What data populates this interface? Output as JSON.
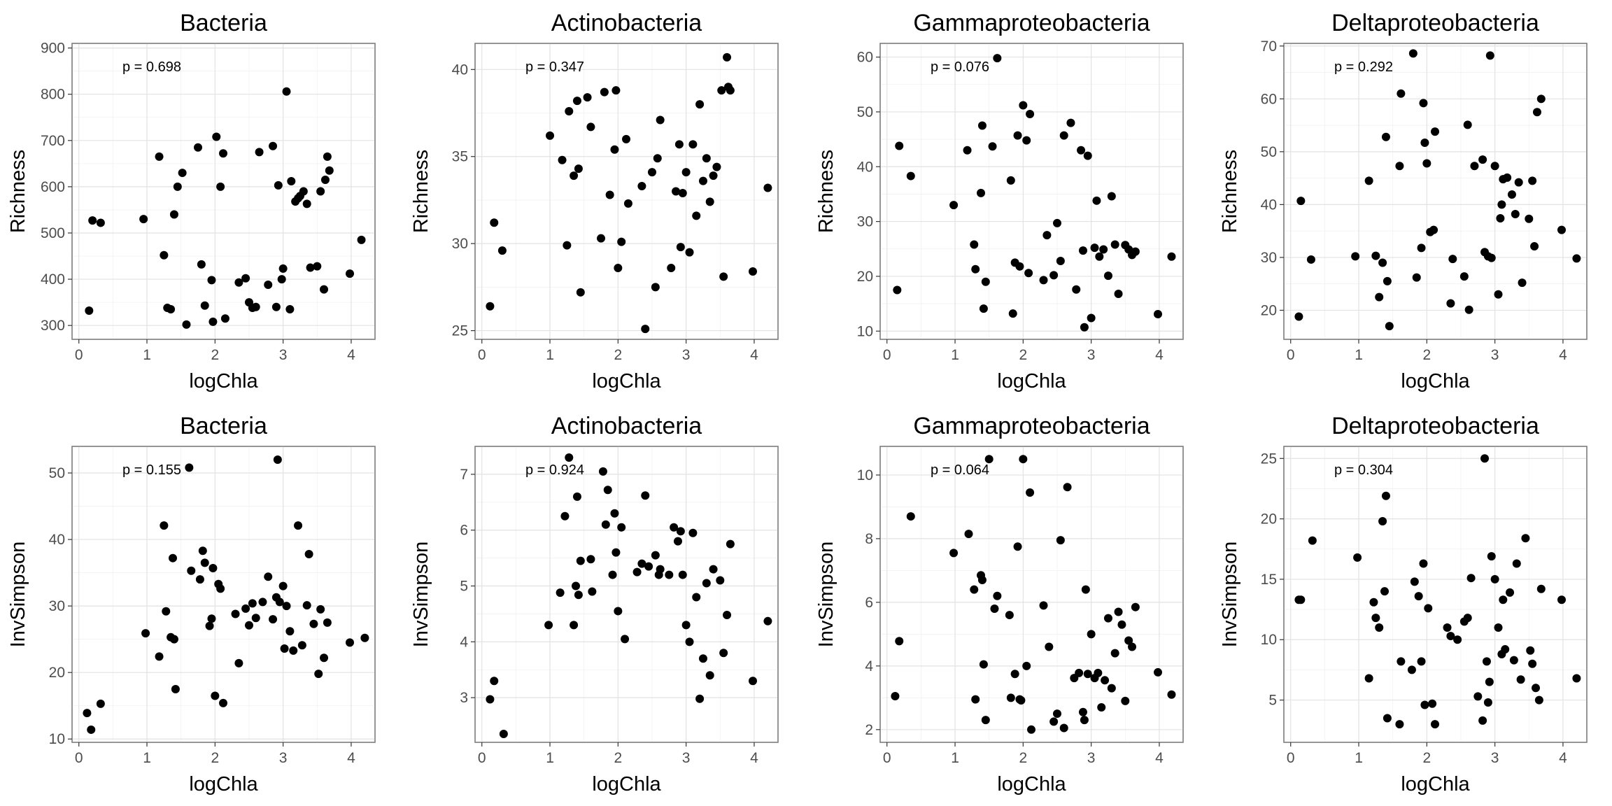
{
  "chart_data": [
    {
      "type": "scatter",
      "title": "Bacteria",
      "xlabel": "logChla",
      "ylabel": "Richness",
      "annotation": "p = 0.698",
      "xlim": [
        -0.1,
        4.35
      ],
      "ylim": [
        270,
        910
      ],
      "xticks": [
        0,
        1,
        2,
        3,
        4
      ],
      "yticks": [
        300,
        400,
        500,
        600,
        700,
        800,
        900
      ],
      "grid": true,
      "x": [
        0.15,
        0.2,
        0.32,
        0.95,
        1.18,
        1.25,
        1.3,
        1.35,
        1.4,
        1.45,
        1.52,
        1.58,
        1.75,
        1.8,
        1.85,
        1.95,
        1.97,
        2.02,
        2.08,
        2.12,
        2.15,
        2.35,
        2.45,
        2.5,
        2.55,
        2.6,
        2.65,
        2.78,
        2.85,
        2.9,
        2.93,
        2.98,
        3.0,
        3.05,
        3.1,
        3.12,
        3.18,
        3.22,
        3.25,
        3.3,
        3.35,
        3.4,
        3.5,
        3.55,
        3.6,
        3.62,
        3.65,
        3.68,
        3.98,
        4.15
      ],
      "y": [
        332,
        527,
        522,
        530,
        665,
        452,
        338,
        335,
        540,
        600,
        630,
        302,
        685,
        432,
        343,
        398,
        308,
        708,
        600,
        672,
        315,
        393,
        402,
        350,
        338,
        340,
        675,
        388,
        688,
        340,
        603,
        400,
        423,
        806,
        335,
        612,
        568,
        575,
        580,
        590,
        563,
        425,
        428,
        590,
        378,
        615,
        665,
        635,
        412,
        485
      ]
    },
    {
      "type": "scatter",
      "title": "Actinobacteria",
      "xlabel": "logChla",
      "ylabel": "Richness",
      "annotation": "p = 0.347",
      "xlim": [
        -0.1,
        4.35
      ],
      "ylim": [
        24.5,
        41.5
      ],
      "xticks": [
        0,
        1,
        2,
        3,
        4
      ],
      "yticks": [
        25,
        30,
        35,
        40
      ],
      "grid": true,
      "x": [
        0.12,
        0.18,
        0.3,
        1.0,
        1.18,
        1.25,
        1.28,
        1.35,
        1.4,
        1.42,
        1.45,
        1.55,
        1.6,
        1.75,
        1.8,
        1.88,
        1.95,
        1.97,
        2.0,
        2.05,
        2.12,
        2.15,
        2.35,
        2.4,
        2.5,
        2.55,
        2.58,
        2.62,
        2.78,
        2.85,
        2.9,
        2.92,
        2.95,
        3.0,
        3.05,
        3.1,
        3.15,
        3.2,
        3.25,
        3.3,
        3.35,
        3.4,
        3.45,
        3.52,
        3.55,
        3.6,
        3.62,
        3.65,
        3.98,
        4.2
      ],
      "y": [
        26.4,
        31.2,
        29.6,
        36.2,
        34.8,
        29.9,
        37.6,
        33.9,
        38.2,
        34.3,
        27.2,
        38.4,
        36.7,
        30.3,
        38.7,
        32.8,
        35.4,
        38.8,
        28.6,
        30.1,
        36.0,
        32.3,
        33.3,
        25.1,
        34.1,
        27.5,
        34.9,
        37.1,
        28.6,
        33.0,
        35.7,
        29.8,
        32.9,
        34.1,
        29.5,
        35.7,
        31.6,
        38.0,
        33.6,
        34.9,
        32.4,
        33.9,
        34.4,
        38.8,
        28.1,
        40.7,
        39.0,
        38.8,
        28.4,
        33.2
      ]
    },
    {
      "type": "scatter",
      "title": "Gammaproteobacteria",
      "xlabel": "logChla",
      "ylabel": "Richness",
      "annotation": "p = 0.076",
      "xlim": [
        -0.1,
        4.35
      ],
      "ylim": [
        8.5,
        62.5
      ],
      "xticks": [
        0,
        1,
        2,
        3,
        4
      ],
      "yticks": [
        10,
        20,
        30,
        40,
        50,
        60
      ],
      "grid": true,
      "x": [
        0.15,
        0.18,
        0.35,
        0.98,
        1.18,
        1.28,
        1.3,
        1.38,
        1.4,
        1.42,
        1.45,
        1.55,
        1.62,
        1.82,
        1.85,
        1.88,
        1.92,
        1.95,
        2.0,
        2.05,
        2.08,
        2.1,
        2.3,
        2.35,
        2.45,
        2.5,
        2.55,
        2.6,
        2.7,
        2.78,
        2.85,
        2.88,
        2.9,
        2.95,
        3.0,
        3.05,
        3.08,
        3.12,
        3.18,
        3.25,
        3.3,
        3.35,
        3.4,
        3.5,
        3.55,
        3.6,
        3.62,
        3.65,
        3.98,
        4.18
      ],
      "y": [
        17.5,
        43.8,
        38.3,
        33.0,
        43.0,
        25.8,
        21.3,
        35.2,
        47.5,
        14.1,
        19.0,
        43.7,
        59.8,
        37.5,
        13.2,
        22.5,
        45.7,
        21.8,
        51.2,
        44.8,
        20.6,
        49.6,
        19.3,
        27.5,
        20.2,
        29.7,
        22.8,
        45.7,
        48.0,
        17.6,
        43.0,
        24.7,
        10.7,
        42.0,
        12.4,
        25.2,
        33.8,
        23.6,
        24.9,
        20.1,
        34.6,
        25.8,
        16.8,
        25.7,
        24.9,
        23.9,
        24.4,
        24.5,
        13.1,
        23.6
      ]
    },
    {
      "type": "scatter",
      "title": "Deltaproteobacteria",
      "xlabel": "logChla",
      "ylabel": "Richness",
      "annotation": "p = 0.292",
      "xlim": [
        -0.1,
        4.35
      ],
      "ylim": [
        14.5,
        70.5
      ],
      "xticks": [
        0,
        1,
        2,
        3,
        4
      ],
      "yticks": [
        20,
        30,
        40,
        50,
        60,
        70
      ],
      "grid": true,
      "x": [
        0.12,
        0.15,
        0.3,
        0.95,
        1.15,
        1.25,
        1.3,
        1.35,
        1.4,
        1.42,
        1.45,
        1.6,
        1.62,
        1.8,
        1.85,
        1.92,
        1.95,
        1.97,
        2.0,
        2.05,
        2.1,
        2.12,
        2.35,
        2.38,
        2.55,
        2.6,
        2.62,
        2.7,
        2.82,
        2.85,
        2.9,
        2.93,
        2.95,
        3.0,
        3.05,
        3.08,
        3.1,
        3.12,
        3.18,
        3.25,
        3.3,
        3.35,
        3.4,
        3.5,
        3.55,
        3.58,
        3.62,
        3.68,
        3.98,
        4.2
      ],
      "y": [
        18.8,
        40.7,
        29.6,
        30.2,
        44.5,
        30.3,
        22.5,
        29.0,
        52.8,
        25.5,
        17.0,
        47.3,
        61.0,
        68.6,
        26.2,
        31.8,
        59.2,
        51.7,
        47.8,
        34.8,
        35.2,
        53.8,
        21.3,
        29.7,
        26.4,
        55.1,
        20.1,
        47.3,
        48.5,
        31.0,
        30.2,
        68.2,
        29.9,
        47.3,
        23.0,
        37.4,
        40.0,
        44.8,
        45.1,
        41.9,
        38.2,
        44.2,
        25.2,
        37.3,
        44.5,
        32.1,
        57.5,
        60.0,
        35.2,
        29.8
      ]
    },
    {
      "type": "scatter",
      "title": "Bacteria",
      "xlabel": "logChla",
      "ylabel": "InvSimpson",
      "annotation": "p = 0.155",
      "xlim": [
        -0.1,
        4.35
      ],
      "ylim": [
        9.5,
        54.0
      ],
      "xticks": [
        0,
        1,
        2,
        3,
        4
      ],
      "yticks": [
        10,
        20,
        30,
        40,
        50
      ],
      "grid": true,
      "x": [
        0.12,
        0.18,
        0.32,
        0.98,
        1.18,
        1.25,
        1.28,
        1.35,
        1.38,
        1.4,
        1.42,
        1.62,
        1.65,
        1.78,
        1.82,
        1.85,
        1.92,
        1.95,
        1.97,
        2.0,
        2.05,
        2.08,
        2.12,
        2.3,
        2.35,
        2.45,
        2.5,
        2.55,
        2.6,
        2.7,
        2.78,
        2.85,
        2.9,
        2.92,
        2.95,
        3.0,
        3.02,
        3.05,
        3.1,
        3.15,
        3.22,
        3.28,
        3.35,
        3.38,
        3.45,
        3.52,
        3.55,
        3.6,
        3.65,
        3.98,
        4.2
      ],
      "y": [
        13.9,
        11.4,
        15.3,
        25.9,
        22.4,
        42.1,
        29.2,
        25.3,
        37.2,
        25.0,
        17.5,
        50.8,
        35.3,
        34.0,
        38.3,
        36.5,
        27.0,
        28.1,
        35.7,
        16.5,
        33.3,
        32.6,
        15.4,
        28.8,
        21.4,
        29.6,
        27.1,
        30.4,
        28.2,
        30.6,
        34.4,
        28.0,
        31.3,
        52.0,
        30.6,
        33.0,
        23.6,
        30.0,
        26.2,
        23.3,
        42.1,
        24.1,
        30.1,
        37.8,
        27.3,
        19.8,
        29.5,
        22.2,
        27.5,
        24.5,
        25.2
      ]
    },
    {
      "type": "scatter",
      "title": "Actinobacteria",
      "xlabel": "logChla",
      "ylabel": "InvSimpson",
      "annotation": "p = 0.924",
      "xlim": [
        -0.1,
        4.35
      ],
      "ylim": [
        2.2,
        7.5
      ],
      "xticks": [
        0,
        1,
        2,
        3,
        4
      ],
      "yticks": [
        3,
        4,
        5,
        6,
        7
      ],
      "grid": true,
      "x": [
        0.12,
        0.18,
        0.32,
        0.98,
        1.15,
        1.22,
        1.28,
        1.35,
        1.38,
        1.4,
        1.42,
        1.45,
        1.6,
        1.62,
        1.78,
        1.82,
        1.85,
        1.92,
        1.95,
        1.97,
        2.0,
        2.05,
        2.1,
        2.28,
        2.35,
        2.4,
        2.45,
        2.55,
        2.6,
        2.62,
        2.75,
        2.82,
        2.88,
        2.92,
        2.95,
        3.0,
        3.05,
        3.1,
        3.15,
        3.2,
        3.25,
        3.3,
        3.35,
        3.4,
        3.5,
        3.55,
        3.6,
        3.65,
        3.98,
        4.2
      ],
      "y": [
        2.97,
        3.3,
        2.35,
        4.3,
        4.88,
        6.25,
        7.3,
        4.3,
        5.0,
        6.6,
        4.84,
        5.45,
        5.48,
        4.9,
        7.05,
        6.1,
        6.72,
        5.2,
        6.3,
        5.6,
        4.55,
        6.05,
        4.05,
        5.25,
        5.4,
        6.62,
        5.35,
        5.55,
        5.2,
        5.3,
        5.2,
        6.05,
        5.8,
        5.98,
        5.2,
        4.3,
        4.0,
        5.95,
        4.8,
        2.98,
        3.7,
        5.05,
        3.4,
        5.3,
        5.1,
        3.8,
        4.48,
        5.75,
        3.3,
        4.37
      ]
    },
    {
      "type": "scatter",
      "title": "Gammaproteobacteria",
      "xlabel": "logChla",
      "ylabel": "InvSimpson",
      "annotation": "p = 0.064",
      "xlim": [
        -0.1,
        4.35
      ],
      "ylim": [
        1.6,
        10.9
      ],
      "xticks": [
        0,
        1,
        2,
        3,
        4
      ],
      "yticks": [
        2,
        4,
        6,
        8,
        10
      ],
      "grid": true,
      "x": [
        0.12,
        0.18,
        0.35,
        0.98,
        1.2,
        1.28,
        1.3,
        1.38,
        1.4,
        1.42,
        1.45,
        1.5,
        1.58,
        1.62,
        1.8,
        1.82,
        1.88,
        1.92,
        1.95,
        1.97,
        2.0,
        2.05,
        2.1,
        2.12,
        2.3,
        2.38,
        2.45,
        2.5,
        2.55,
        2.6,
        2.65,
        2.75,
        2.82,
        2.88,
        2.9,
        2.92,
        2.95,
        3.0,
        3.05,
        3.1,
        3.15,
        3.2,
        3.25,
        3.3,
        3.35,
        3.4,
        3.45,
        3.5,
        3.55,
        3.6,
        3.65,
        3.98,
        4.18
      ],
      "y": [
        3.05,
        4.78,
        8.7,
        7.55,
        8.15,
        6.4,
        2.95,
        6.85,
        6.7,
        4.05,
        2.3,
        10.5,
        5.8,
        6.2,
        5.6,
        3.0,
        3.75,
        7.75,
        2.95,
        2.92,
        10.5,
        4.0,
        9.45,
        2.0,
        5.9,
        4.6,
        2.25,
        2.5,
        7.95,
        2.05,
        9.62,
        3.62,
        3.78,
        2.55,
        2.3,
        6.4,
        3.75,
        5.0,
        3.62,
        3.78,
        2.7,
        3.55,
        5.5,
        3.3,
        4.4,
        5.7,
        5.3,
        2.9,
        4.8,
        4.6,
        5.85,
        3.8,
        3.1
      ]
    },
    {
      "type": "scatter",
      "title": "Deltaproteobacteria",
      "xlabel": "logChla",
      "ylabel": "InvSimpson",
      "annotation": "p = 0.304",
      "xlim": [
        -0.1,
        4.35
      ],
      "ylim": [
        1.5,
        26.0
      ],
      "xticks": [
        0,
        1,
        2,
        3,
        4
      ],
      "yticks": [
        5,
        10,
        15,
        20,
        25
      ],
      "grid": true,
      "x": [
        0.12,
        0.15,
        0.32,
        0.98,
        1.15,
        1.22,
        1.25,
        1.3,
        1.35,
        1.38,
        1.4,
        1.42,
        1.6,
        1.62,
        1.78,
        1.82,
        1.88,
        1.92,
        1.95,
        1.97,
        2.02,
        2.08,
        2.12,
        2.3,
        2.35,
        2.45,
        2.55,
        2.6,
        2.65,
        2.75,
        2.82,
        2.85,
        2.88,
        2.9,
        2.92,
        2.95,
        3.0,
        3.05,
        3.1,
        3.12,
        3.15,
        3.22,
        3.28,
        3.32,
        3.38,
        3.45,
        3.52,
        3.55,
        3.6,
        3.65,
        3.68,
        3.98,
        4.2
      ],
      "y": [
        13.3,
        13.3,
        18.2,
        16.8,
        6.8,
        13.1,
        11.8,
        11.0,
        19.8,
        14.0,
        21.9,
        3.5,
        3.0,
        8.2,
        7.5,
        14.8,
        13.6,
        8.2,
        16.3,
        4.6,
        12.6,
        4.7,
        3.0,
        11.0,
        10.3,
        10.0,
        11.5,
        11.8,
        15.1,
        5.3,
        3.3,
        25.0,
        8.2,
        4.8,
        6.5,
        16.9,
        15.0,
        11.0,
        8.8,
        13.3,
        9.2,
        13.9,
        8.3,
        16.3,
        6.7,
        18.4,
        9.1,
        8.0,
        6.0,
        5.0,
        14.2,
        13.3,
        6.8
      ]
    }
  ]
}
